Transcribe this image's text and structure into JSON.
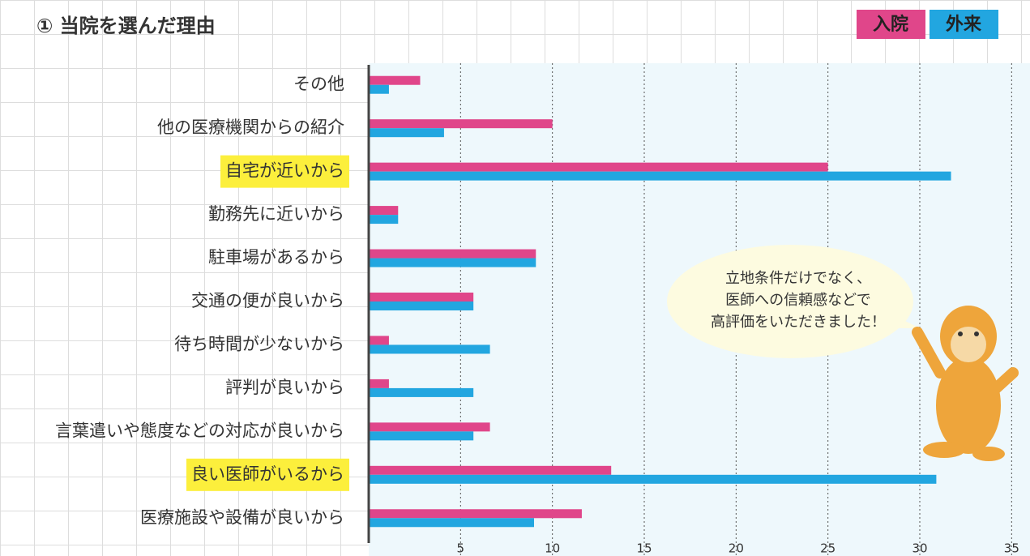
{
  "chart_data": {
    "type": "hbar",
    "title": "① 当院を選んだ理由",
    "categories": [
      "その他",
      "他の医療機関からの紹介",
      "自宅が近いから",
      "勤務先に近いから",
      "駐車場があるから",
      "交通の便が良いから",
      "待ち時間が少ないから",
      "評判が良いから",
      "言葉遣いや態度などの対応が良いから",
      "良い医師がいるから",
      "医療施設や設備が良いから"
    ],
    "series": [
      {
        "name": "入院",
        "color": "#e0468a",
        "values": [
          2.8,
          10,
          25,
          1.6,
          9.1,
          5.7,
          1.1,
          1.1,
          6.6,
          13.2,
          11.6
        ]
      },
      {
        "name": "外来",
        "color": "#22a6e0",
        "values": [
          1.1,
          4.1,
          31.7,
          1.6,
          9.1,
          5.7,
          6.6,
          5.7,
          5.7,
          30.9,
          9.0
        ]
      }
    ],
    "highlight": [
      2,
      9
    ],
    "xlim": [
      0,
      36
    ],
    "xticks": [
      5,
      10,
      15,
      20,
      25,
      30,
      35
    ],
    "grid": true,
    "legend": "top-right",
    "annotation": [
      "立地条件だけでなく、",
      "医師への信頼感などで",
      "高評価をいただきました！"
    ]
  }
}
